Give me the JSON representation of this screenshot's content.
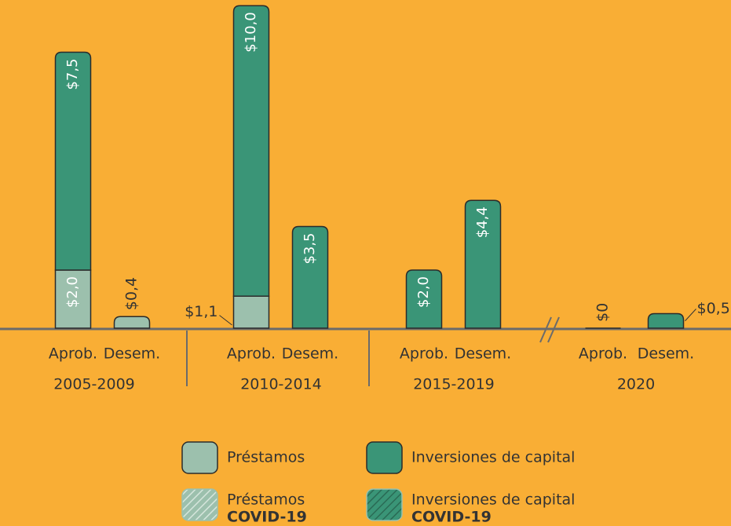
{
  "chart_data": {
    "type": "bar",
    "stacked": true,
    "categories": [
      "Aprob.",
      "Desem.",
      "Aprob.",
      "Desem.",
      "Aprob.",
      "Desem.",
      "Aprob.",
      "Desem."
    ],
    "groups": [
      "2005-2009",
      "2010-2014",
      "2015-2019",
      "2020"
    ],
    "series": [
      {
        "name": "Préstamos",
        "color": "#9cc0ad",
        "values": [
          2.0,
          0.4,
          1.1,
          null,
          null,
          null,
          null,
          null
        ],
        "value_labels": [
          "$2,0",
          "$0,4",
          "$1,1",
          null,
          null,
          null,
          null,
          null
        ]
      },
      {
        "name": "Inversiones de capital",
        "color": "#3a9577",
        "values": [
          7.5,
          null,
          10.0,
          3.5,
          2.0,
          4.4,
          0,
          0.5
        ],
        "value_labels": [
          "$7,5",
          null,
          "$10,0",
          "$3,5",
          "$2,0",
          "$4,4",
          "$0",
          "$0,5"
        ]
      },
      {
        "name": "Préstamos",
        "tag": "COVID-19",
        "color": "#9cc0ad",
        "hatch": true,
        "values": [
          null,
          null,
          null,
          null,
          null,
          null,
          null,
          null
        ]
      },
      {
        "name": "Inversiones de capital",
        "tag": "COVID-19",
        "color": "#3a9577",
        "hatch": true,
        "values": [
          null,
          null,
          null,
          null,
          null,
          null,
          null,
          null
        ]
      }
    ]
  }
}
